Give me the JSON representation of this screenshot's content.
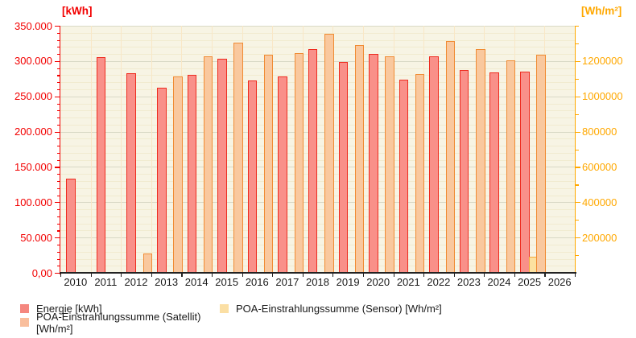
{
  "chart_data": {
    "type": "bar",
    "title": "",
    "categories": [
      "2010",
      "2011",
      "2012",
      "2013",
      "2014",
      "2015",
      "2016",
      "2017",
      "2018",
      "2019",
      "2020",
      "2021",
      "2022",
      "2023",
      "2024",
      "2025",
      "2026"
    ],
    "series": [
      {
        "key": "energie",
        "name": "Energie [kWh]",
        "axis": "left",
        "fill": "#f99089",
        "stroke": "#ee2c1f",
        "values": [
          133000,
          306000,
          283000,
          262000,
          281000,
          303000,
          272000,
          278000,
          317000,
          299000,
          310000,
          274000,
          307000,
          287000,
          284000,
          285000,
          null
        ]
      },
      {
        "key": "poa-satellit",
        "name": "POA-Einstrahlungssumme (Satellit) [Wh/m²]",
        "axis": "right",
        "fill": "#f9c89e",
        "stroke": "#f08b33",
        "values": [
          null,
          null,
          110000,
          1114000,
          1228000,
          1303000,
          1234000,
          1245000,
          1356000,
          1292000,
          1229000,
          1126000,
          1313000,
          1266000,
          1203000,
          1238000,
          null
        ]
      },
      {
        "key": "poa-sensor",
        "name": "POA-Einstrahlungssumme (Sensor) [Wh/m²]",
        "axis": "right",
        "fill": "#fce1a0",
        "stroke": "#f2a93b",
        "values": [
          null,
          null,
          null,
          null,
          null,
          null,
          null,
          null,
          null,
          null,
          null,
          null,
          null,
          null,
          null,
          90000,
          null
        ]
      }
    ],
    "left_axis": {
      "title": "[kWh]",
      "color": "#f20000",
      "min": 0,
      "max": 350000,
      "major_step": 50000,
      "minor_step": 10000,
      "tick_labels": [
        "350.000",
        "300.000",
        "250.000",
        "200.000",
        "150.000",
        "100.000",
        "50.000",
        "0,00"
      ]
    },
    "right_axis": {
      "title": "[Wh/m²]",
      "color": "#ffa800",
      "min": 0,
      "max": 1400000,
      "major_step": 200000,
      "minor_step": 100000,
      "tick_labels": [
        "1200000",
        "1000000",
        "800000",
        "600000",
        "400000",
        "200000"
      ]
    },
    "x_axis": {
      "color": "#1a1a1a",
      "labels": [
        "2010",
        "2011",
        "2012",
        "2013",
        "2014",
        "2015",
        "2016",
        "2017",
        "2018",
        "2019",
        "2020",
        "2021",
        "2022",
        "2023",
        "2024",
        "2025",
        "2026"
      ]
    },
    "grid": {
      "background": "#f7f4e4",
      "major_color": "#d9d9c6",
      "minor_color": "#f1ebd0",
      "vertical_color": "#f9e7c6",
      "border_color": "#222222"
    },
    "legend": [
      {
        "label": "Energie [kWh]",
        "color": "#f5877f"
      },
      {
        "label": "POA-Einstrahlungssumme (Satellit) [Wh/m²]",
        "color": "#f9be9c"
      },
      {
        "label": "POA-Einstrahlungssumme (Sensor) [Wh/m²]",
        "color": "#fbdfa4"
      }
    ]
  }
}
